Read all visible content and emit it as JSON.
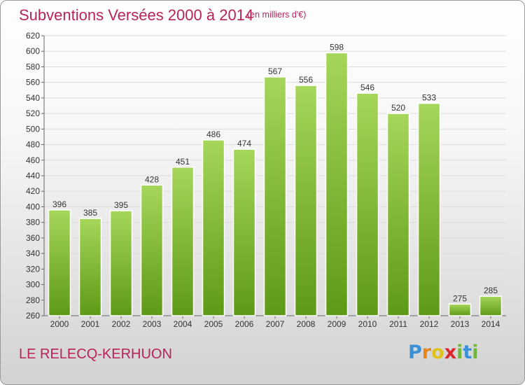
{
  "header": {
    "title": "Subventions Versées 2000 à 2014",
    "unit_note": "(en milliers d'€)"
  },
  "footer": {
    "commune": "LE RELECQ-KERHUON",
    "logo_letters": [
      "P",
      "r",
      "o",
      "x",
      "i",
      "t",
      "i"
    ],
    "logo_colors": [
      "#3a8fd6",
      "#e8861c",
      "#e0c21a",
      "#d9282e",
      "#6fb73a",
      "#3a8fd6",
      "#6fb73a"
    ]
  },
  "colors": {
    "bar_top": "#a6d65a",
    "bar_bottom": "#5e9a15",
    "bar_stroke": "#ffffff",
    "grid": "#dddddd",
    "title": "#b8245a"
  },
  "chart_data": {
    "type": "bar",
    "categories": [
      "2000",
      "2001",
      "2002",
      "2003",
      "2004",
      "2005",
      "2006",
      "2007",
      "2008",
      "2009",
      "2010",
      "2011",
      "2012",
      "2013",
      "2014"
    ],
    "values": [
      396,
      385,
      395,
      428,
      451,
      486,
      474,
      567,
      556,
      598,
      546,
      520,
      533,
      275,
      285
    ],
    "ylim": [
      260,
      620
    ],
    "yticks": [
      260,
      280,
      300,
      320,
      340,
      360,
      380,
      400,
      420,
      440,
      460,
      480,
      500,
      520,
      540,
      560,
      580,
      600,
      620
    ],
    "grid": true,
    "data_labels": true
  }
}
